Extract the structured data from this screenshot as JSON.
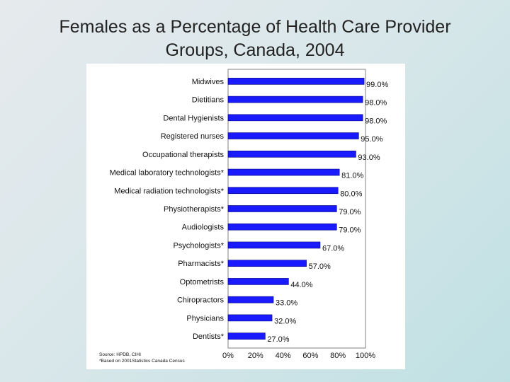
{
  "title_lines": [
    "Females as a Percentage of Health Care Provider",
    "Groups, Canada, 2004"
  ],
  "source_lines": [
    "Source: HPDB, CIHI",
    "*Based on 2001Statistics Canada Census"
  ],
  "colors": {
    "bar": "#1a1aff",
    "bar_edge": "#000080"
  },
  "chart_data": {
    "type": "bar",
    "orientation": "horizontal",
    "title": "Females as a Percentage of Health Care Provider Groups, Canada, 2004",
    "xlabel": "",
    "ylabel": "",
    "xlim": [
      0,
      100
    ],
    "grid": false,
    "categories": [
      "Midwives",
      "Dietitians",
      "Dental Hygienists",
      "Registered nurses",
      "Occupational therapists",
      "Medical laboratory technologists*",
      "Medical radiation technologists*",
      "Physiotherapists*",
      "Audiologists",
      "Psychologists*",
      "Pharmacists*",
      "Optometrists",
      "Chiropractors",
      "Physicians",
      "Dentists*"
    ],
    "values": [
      99.0,
      98.0,
      98.0,
      95.0,
      93.0,
      81.0,
      80.0,
      79.0,
      79.0,
      67.0,
      57.0,
      44.0,
      33.0,
      32.0,
      27.0
    ],
    "value_labels": [
      "99.0%",
      "98.0%",
      "98.0%",
      "95.0%",
      "93.0%",
      "81.0%",
      "80.0%",
      "79.0%",
      "79.0%",
      "67.0%",
      "57.0%",
      "44.0%",
      "33.0%",
      "32.0%",
      "27.0%"
    ],
    "x_ticks": [
      "0%",
      "20%",
      "40%",
      "60%",
      "80%",
      "100%"
    ]
  }
}
